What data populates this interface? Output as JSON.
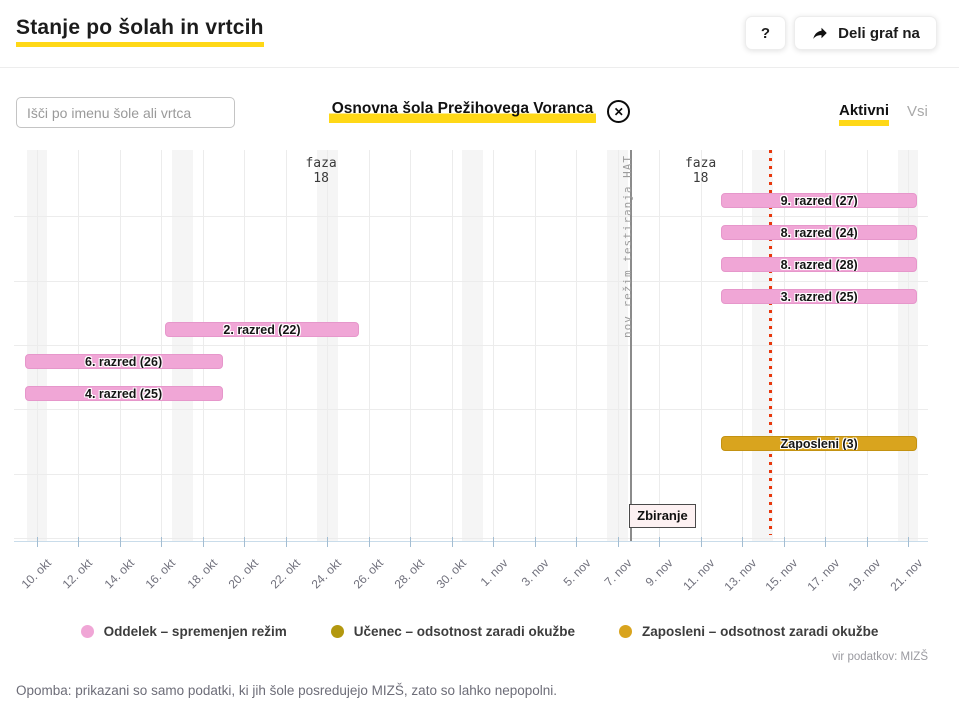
{
  "header": {
    "title": "Stanje po šolah in vrtcih",
    "help_label": "?",
    "share_label": "Deli graf na"
  },
  "filters": {
    "search_placeholder": "Išči po imenu šole ali vrtca",
    "selected_school": "Osnovna šola Prežihovega Voranca",
    "close_glyph": "✕",
    "tabs": [
      {
        "label": "Aktivni",
        "active": true
      },
      {
        "label": "Vsi",
        "active": false
      }
    ]
  },
  "chart_data": {
    "type": "gantt-timeline",
    "title": "",
    "x_ticks": [
      "10. okt",
      "12. okt",
      "14. okt",
      "16. okt",
      "18. okt",
      "20. okt",
      "22. okt",
      "24. okt",
      "26. okt",
      "28. okt",
      "30. okt",
      "1. nov",
      "3. nov",
      "5. nov",
      "7. nov",
      "9. nov",
      "11. nov",
      "13. nov",
      "15. nov",
      "17. nov",
      "19. nov",
      "21. nov"
    ],
    "tick_interval_days": 2,
    "sunday_band_days": [
      0,
      7,
      14,
      21,
      28,
      35,
      42
    ],
    "bars": [
      {
        "label": "9. razred (27)",
        "row": 0,
        "start_day": 33,
        "end_day": null,
        "type": "oddelek"
      },
      {
        "label": "8. razred (24)",
        "row": 1,
        "start_day": 33,
        "end_day": null,
        "type": "oddelek"
      },
      {
        "label": "8. razred (28)",
        "row": 2,
        "start_day": 33,
        "end_day": null,
        "type": "oddelek"
      },
      {
        "label": "3. razred (25)",
        "row": 3,
        "start_day": 33,
        "end_day": null,
        "type": "oddelek"
      },
      {
        "label": "2. razred (22)",
        "row": 4,
        "start_day": 6.15,
        "end_day": 15.55,
        "type": "oddelek"
      },
      {
        "label": "6. razred (26)",
        "row": 5,
        "start_day": -0.6,
        "end_day": 8.95,
        "type": "oddelek"
      },
      {
        "label": "4. razred (25)",
        "row": 6,
        "start_day": -0.6,
        "end_day": 8.95,
        "type": "oddelek"
      },
      {
        "label": "Zaposleni (3)",
        "row": 7.55,
        "start_day": 33,
        "end_day": null,
        "type": "zaposleni"
      }
    ],
    "annotations": {
      "faza_labels": [
        {
          "text": "faza\n18",
          "day": 13.7
        },
        {
          "text": "faza\n18",
          "day": 32
        }
      ],
      "regime_line": {
        "label": "nov režim testiranja HAT",
        "day": 28.65
      },
      "today_line": {
        "day": 35.35,
        "color": "#e8380d"
      },
      "zbiranje": {
        "label": "Zbiranje",
        "day": 28.65
      }
    },
    "colors": {
      "oddelek": "#f0a6d6",
      "ucenec": "#b3980f",
      "zaposleni": "#d9a41e",
      "accent_yellow": "#ffd817"
    }
  },
  "legend": [
    {
      "label": "Oddelek – spremenjen režim",
      "color": "#f0a6d6"
    },
    {
      "label": "Učenec – odsotnost zaradi okužbe",
      "color": "#b3980f"
    },
    {
      "label": "Zaposleni – odsotnost zaradi okužbe",
      "color": "#d9a41e"
    }
  ],
  "footer": {
    "source": "vir podatkov: MIZŠ",
    "note": "Opomba: prikazani so samo podatki, ki jih šole posredujejo MIZŠ, zato so lahko nepopolni."
  }
}
